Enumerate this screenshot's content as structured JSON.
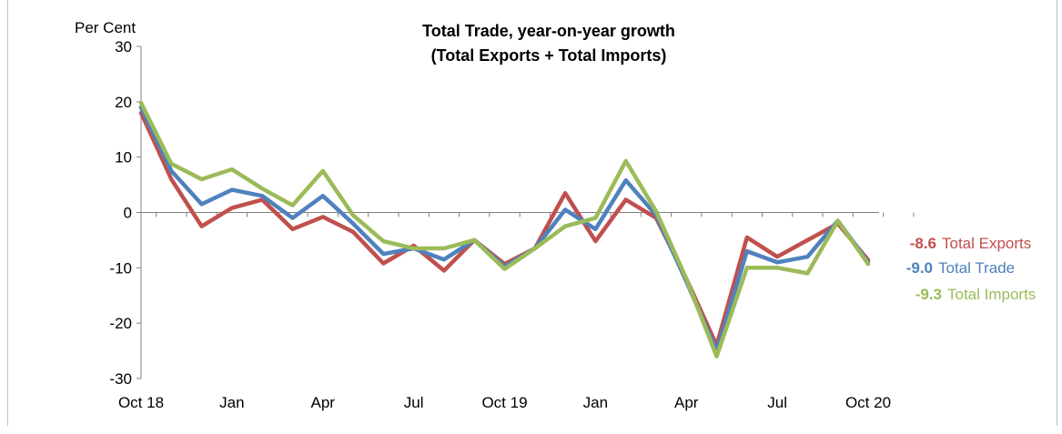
{
  "chart_data": {
    "type": "line",
    "title": [
      "Total Trade, year-on-year growth",
      "(Total Exports + Total Imports)"
    ],
    "ylabel": "Per Cent",
    "ylim": [
      -30,
      30
    ],
    "yticks": [
      -30,
      -20,
      -10,
      0,
      10,
      20,
      30
    ],
    "x": [
      "Oct 18",
      "Nov 18",
      "Dec 18",
      "Jan 19",
      "Feb 19",
      "Mar 19",
      "Apr 19",
      "May 19",
      "Jun 19",
      "Jul 19",
      "Aug 19",
      "Sep 19",
      "Oct 19",
      "Nov 19",
      "Dec 19",
      "Jan 20",
      "Feb 20",
      "Mar 20",
      "Apr 20",
      "May 20",
      "Jun 20",
      "Jul 20",
      "Aug 20",
      "Sep 20",
      "Oct 20"
    ],
    "xtick_labels": [
      {
        "index": 0,
        "label": "Oct 18"
      },
      {
        "index": 3,
        "label": "Jan"
      },
      {
        "index": 6,
        "label": "Apr"
      },
      {
        "index": 9,
        "label": "Jul"
      },
      {
        "index": 12,
        "label": "Oct 19"
      },
      {
        "index": 15,
        "label": "Jan"
      },
      {
        "index": 18,
        "label": "Apr"
      },
      {
        "index": 21,
        "label": "Jul"
      },
      {
        "index": 24,
        "label": "Oct 20"
      }
    ],
    "grid": false,
    "legend": "end-labels",
    "series": [
      {
        "name": "Total Exports",
        "color": "#c0504d",
        "end_label": "-8.6",
        "values": [
          18.0,
          6.0,
          -2.5,
          0.8,
          2.3,
          -3.0,
          -0.8,
          -3.5,
          -9.2,
          -6.0,
          -10.5,
          -5.0,
          -9.3,
          -6.5,
          3.5,
          -5.2,
          2.3,
          -1.0,
          -12.0,
          -24.0,
          -4.5,
          -8.0,
          -5.0,
          -2.0,
          -8.6
        ]
      },
      {
        "name": "Total Trade",
        "color": "#4f81bd",
        "end_label": "-9.0",
        "values": [
          19.0,
          7.5,
          1.5,
          4.1,
          3.0,
          -1.0,
          3.0,
          -2.0,
          -7.5,
          -6.5,
          -8.5,
          -5.0,
          -9.8,
          -6.5,
          0.5,
          -3.0,
          5.8,
          -0.5,
          -12.5,
          -25.0,
          -7.0,
          -9.0,
          -8.0,
          -1.5,
          -9.0
        ]
      },
      {
        "name": "Total Imports",
        "color": "#9bbb59",
        "end_label": "-9.3",
        "values": [
          19.8,
          8.8,
          6.0,
          7.8,
          4.3,
          1.3,
          7.5,
          -0.5,
          -5.2,
          -6.5,
          -6.5,
          -5.0,
          -10.2,
          -6.5,
          -2.5,
          -1.0,
          9.3,
          0.2,
          -12.0,
          -26.0,
          -10.0,
          -10.0,
          -11.0,
          -1.5,
          -9.3
        ]
      }
    ]
  }
}
